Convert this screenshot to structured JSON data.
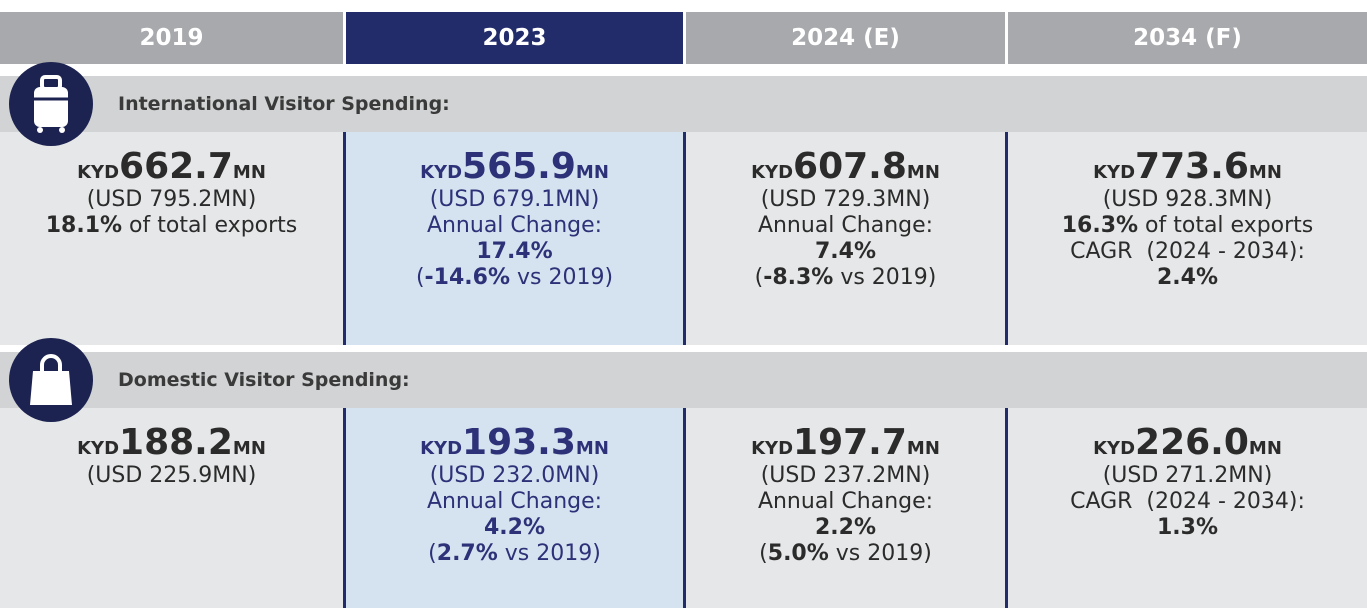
{
  "header": {
    "columns": [
      "2019",
      "2023",
      "2024 (E)",
      "2034 (F)"
    ]
  },
  "sections": [
    {
      "title": "International Visitor Spending:",
      "cells": [
        {
          "currency": "KYD",
          "amount": "662.7",
          "unit": "MN",
          "lines": [
            [
              {
                "text": "(USD 795.2MN)"
              }
            ],
            [
              {
                "text": "18.1%",
                "bold": true
              },
              {
                "text": " of total exports"
              }
            ]
          ]
        },
        {
          "currency": "KYD",
          "amount": "565.9",
          "unit": "MN",
          "lines": [
            [
              {
                "text": "(USD 679.1MN)"
              }
            ],
            [
              {
                "text": "Annual Change:"
              }
            ],
            [
              {
                "text": "17.4%",
                "bold": true
              }
            ],
            [
              {
                "text": "("
              },
              {
                "text": "-14.6%",
                "bold": true
              },
              {
                "text": " vs 2019)"
              }
            ]
          ]
        },
        {
          "currency": "KYD",
          "amount": "607.8",
          "unit": "MN",
          "lines": [
            [
              {
                "text": "(USD 729.3MN)"
              }
            ],
            [
              {
                "text": "Annual Change:"
              }
            ],
            [
              {
                "text": "7.4%",
                "bold": true
              }
            ],
            [
              {
                "text": "("
              },
              {
                "text": "-8.3%",
                "bold": true
              },
              {
                "text": " vs 2019)"
              }
            ]
          ]
        },
        {
          "currency": "KYD",
          "amount": "773.6",
          "unit": "MN",
          "lines": [
            [
              {
                "text": "(USD 928.3MN)"
              }
            ],
            [
              {
                "text": "16.3%",
                "bold": true
              },
              {
                "text": " of total exports"
              }
            ],
            [
              {
                "text": "CAGR  (2024 - 2034):"
              }
            ],
            [
              {
                "text": "2.4%",
                "bold": true
              }
            ]
          ]
        }
      ]
    },
    {
      "title": "Domestic Visitor Spending:",
      "cells": [
        {
          "currency": "KYD",
          "amount": "188.2",
          "unit": "MN",
          "lines": [
            [
              {
                "text": "(USD 225.9MN)"
              }
            ]
          ]
        },
        {
          "currency": "KYD",
          "amount": "193.3",
          "unit": "MN",
          "lines": [
            [
              {
                "text": "(USD 232.0MN)"
              }
            ],
            [
              {
                "text": "Annual Change:"
              }
            ],
            [
              {
                "text": "4.2%",
                "bold": true
              }
            ],
            [
              {
                "text": "("
              },
              {
                "text": "2.7%",
                "bold": true
              },
              {
                "text": " vs 2019)"
              }
            ]
          ]
        },
        {
          "currency": "KYD",
          "amount": "197.7",
          "unit": "MN",
          "lines": [
            [
              {
                "text": "(USD 237.2MN)"
              }
            ],
            [
              {
                "text": "Annual Change:"
              }
            ],
            [
              {
                "text": "2.2%",
                "bold": true
              }
            ],
            [
              {
                "text": "("
              },
              {
                "text": "5.0%",
                "bold": true
              },
              {
                "text": " vs 2019)"
              }
            ]
          ]
        },
        {
          "currency": "KYD",
          "amount": "226.0",
          "unit": "MN",
          "lines": [
            [
              {
                "text": "(USD 271.2MN)"
              }
            ],
            [
              {
                "text": "CAGR  (2024 - 2034):"
              }
            ],
            [
              {
                "text": "1.3%",
                "bold": true
              }
            ]
          ]
        }
      ]
    }
  ]
}
